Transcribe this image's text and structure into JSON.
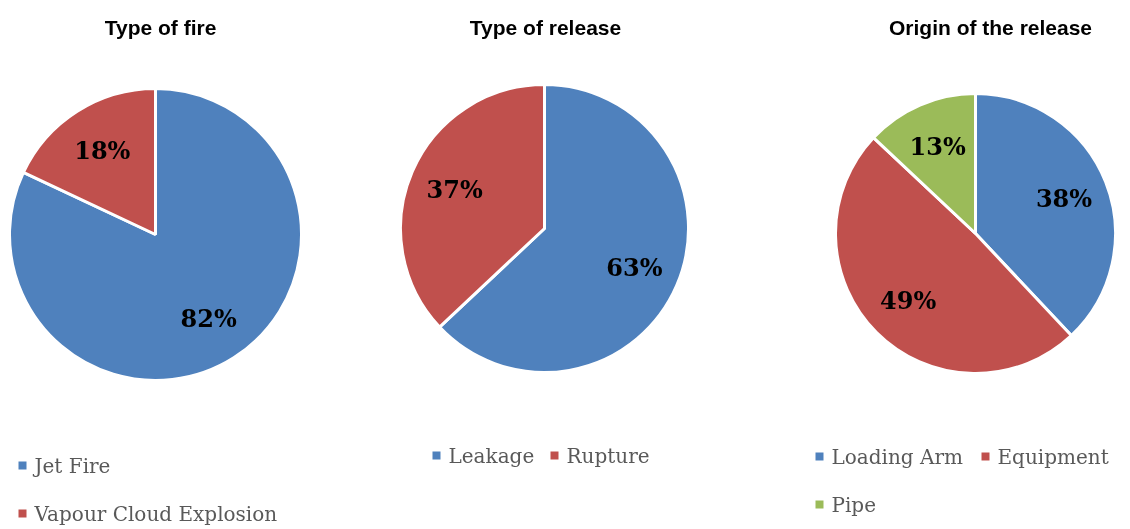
{
  "chart_data": [
    {
      "type": "pie",
      "title": "Type of fire",
      "categories": [
        "Jet Fire",
        "Vapour Cloud Explosion"
      ],
      "values": [
        82,
        18
      ],
      "colors": [
        "#4f81bd",
        "#c0504d"
      ],
      "value_labels": [
        "82%",
        "18%"
      ],
      "legend": "bottom"
    },
    {
      "type": "pie",
      "title": "Type of release",
      "categories": [
        "Leakage",
        "Rupture"
      ],
      "values": [
        63,
        37
      ],
      "colors": [
        "#4f81bd",
        "#c0504d"
      ],
      "value_labels": [
        "63%",
        "37%"
      ],
      "legend": "bottom"
    },
    {
      "type": "pie",
      "title": "Origin of the release",
      "categories": [
        "Loading Arm",
        "Equipment",
        "Pipe"
      ],
      "values": [
        38,
        49,
        13
      ],
      "colors": [
        "#4f81bd",
        "#c0504d",
        "#9bbb59"
      ],
      "value_labels": [
        "38%",
        "49%",
        "13%"
      ],
      "legend": "bottom"
    }
  ]
}
